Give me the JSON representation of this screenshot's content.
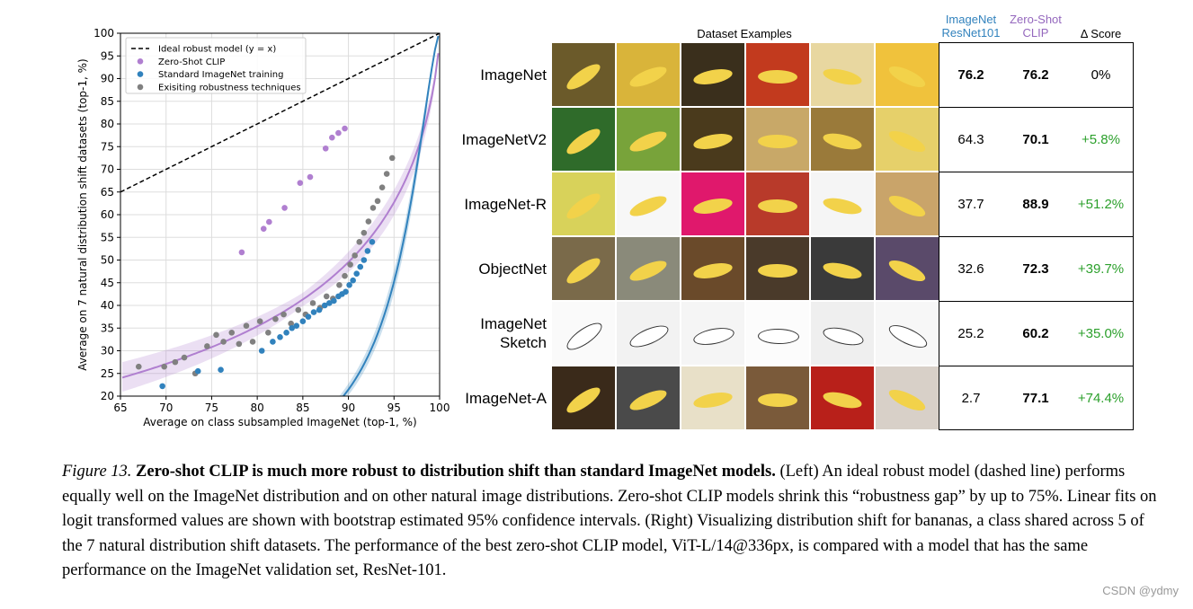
{
  "chart_data": {
    "type": "scatter",
    "xlabel": "Average on class subsampled ImageNet (top-1, %)",
    "ylabel": "Average on 7 natural distribution shift datasets (top-1, %)",
    "xlim": [
      65,
      100
    ],
    "ylim": [
      20,
      100
    ],
    "xticks": [
      65,
      70,
      75,
      80,
      85,
      90,
      95,
      100
    ],
    "yticks": [
      20,
      25,
      30,
      35,
      40,
      45,
      50,
      55,
      60,
      65,
      70,
      75,
      80,
      85,
      90,
      95,
      100
    ],
    "grid": true,
    "legend_position": "top-left",
    "series": [
      {
        "name": "Ideal robust model (y = x)",
        "style": "dashed-line",
        "color": "#000000",
        "x": [
          65,
          100
        ],
        "y": [
          65,
          100
        ]
      },
      {
        "name": "Zero-Shot CLIP",
        "style": "points",
        "color": "#b07fd0",
        "fit_color": "#b07fd0",
        "x": [
          78.3,
          80.7,
          81.3,
          83.0,
          84.7,
          85.8,
          87.5,
          88.2,
          88.9,
          89.6
        ],
        "y": [
          51.7,
          56.9,
          58.4,
          61.5,
          67.0,
          68.3,
          74.6,
          77.0,
          78.0,
          79.0
        ]
      },
      {
        "name": "Standard ImageNet training",
        "style": "points",
        "color": "#3182bd",
        "fit_color": "#3182bd",
        "x": [
          69.6,
          73.5,
          76.0,
          80.5,
          81.7,
          82.5,
          83.2,
          83.8,
          84.3,
          85.0,
          85.6,
          86.2,
          86.8,
          87.4,
          87.9,
          88.4,
          88.9,
          89.3,
          89.7,
          90.1,
          90.5,
          90.9,
          91.3,
          91.7,
          92.1,
          92.6
        ],
        "y": [
          22.2,
          25.5,
          25.8,
          30.0,
          32.0,
          33.0,
          34.0,
          35.0,
          35.5,
          36.5,
          37.5,
          38.5,
          39.0,
          40.0,
          40.5,
          41.0,
          42.0,
          42.5,
          43.0,
          44.5,
          45.5,
          47.0,
          48.5,
          50.0,
          52.0,
          54.0
        ]
      },
      {
        "name": "Exisiting robustness techniques",
        "style": "points",
        "color": "#808080",
        "x": [
          67.0,
          69.8,
          71.0,
          72.0,
          73.2,
          74.5,
          75.5,
          76.3,
          77.2,
          78.0,
          78.8,
          79.5,
          80.3,
          81.2,
          82.0,
          82.9,
          83.7,
          84.5,
          85.3,
          86.1,
          86.9,
          87.6,
          88.3,
          89.0,
          89.6,
          90.2,
          90.7,
          91.2,
          91.7,
          92.2,
          92.7,
          93.2,
          93.7,
          94.2,
          94.8
        ],
        "y": [
          26.5,
          26.5,
          27.5,
          28.5,
          25.0,
          31.0,
          33.5,
          32.0,
          34.0,
          31.5,
          35.5,
          32.0,
          36.5,
          34.0,
          37.0,
          38.0,
          36.0,
          39.0,
          38.0,
          40.5,
          39.5,
          42.0,
          41.5,
          44.5,
          46.5,
          49.0,
          51.0,
          54.0,
          56.0,
          58.5,
          61.5,
          63.0,
          66.0,
          69.0,
          72.5
        ]
      }
    ]
  },
  "dataset_panel": {
    "title": "Dataset Examples",
    "col_headers": {
      "resnet": "ImageNet\nResNet101",
      "clip": "Zero-Shot\nCLIP",
      "delta": "Δ Score"
    },
    "header_colors": {
      "resnet": "#3182bd",
      "clip": "#9467bd"
    },
    "rows": [
      {
        "label": "ImageNet",
        "resnet": "76.2",
        "clip": "76.2",
        "delta": "0%",
        "resnet_bold": true,
        "delta_green": false
      },
      {
        "label": "ImageNetV2",
        "resnet": "64.3",
        "clip": "70.1",
        "delta": "+5.8%",
        "resnet_bold": false,
        "delta_green": true
      },
      {
        "label": "ImageNet-R",
        "resnet": "37.7",
        "clip": "88.9",
        "delta": "+51.2%",
        "resnet_bold": false,
        "delta_green": true
      },
      {
        "label": "ObjectNet",
        "resnet": "32.6",
        "clip": "72.3",
        "delta": "+39.7%",
        "resnet_bold": false,
        "delta_green": true
      },
      {
        "label": "ImageNet\nSketch",
        "resnet": "25.2",
        "clip": "60.2",
        "delta": "+35.0%",
        "resnet_bold": false,
        "delta_green": true
      },
      {
        "label": "ImageNet-A",
        "resnet": "2.7",
        "clip": "77.1",
        "delta": "+74.4%",
        "resnet_bold": false,
        "delta_green": true
      }
    ]
  },
  "caption": {
    "figure_label": "Figure 13.",
    "bold_title": "Zero-shot CLIP is much more robust to distribution shift than standard ImageNet models.",
    "body": "(Left) An ideal robust model (dashed line) performs equally well on the ImageNet distribution and on other natural image distributions. Zero-shot CLIP models shrink this “robustness gap” by up to 75%. Linear fits on logit transformed values are shown with bootstrap estimated 95% confidence intervals. (Right) Visualizing distribution shift for bananas, a class shared across 5 of the 7 natural distribution shift datasets. The performance of the best zero-shot CLIP model, ViT-L/14@336px, is compared with a model that has the same performance on the ImageNet validation set, ResNet-101."
  },
  "watermark": "CSDN @ydmy"
}
